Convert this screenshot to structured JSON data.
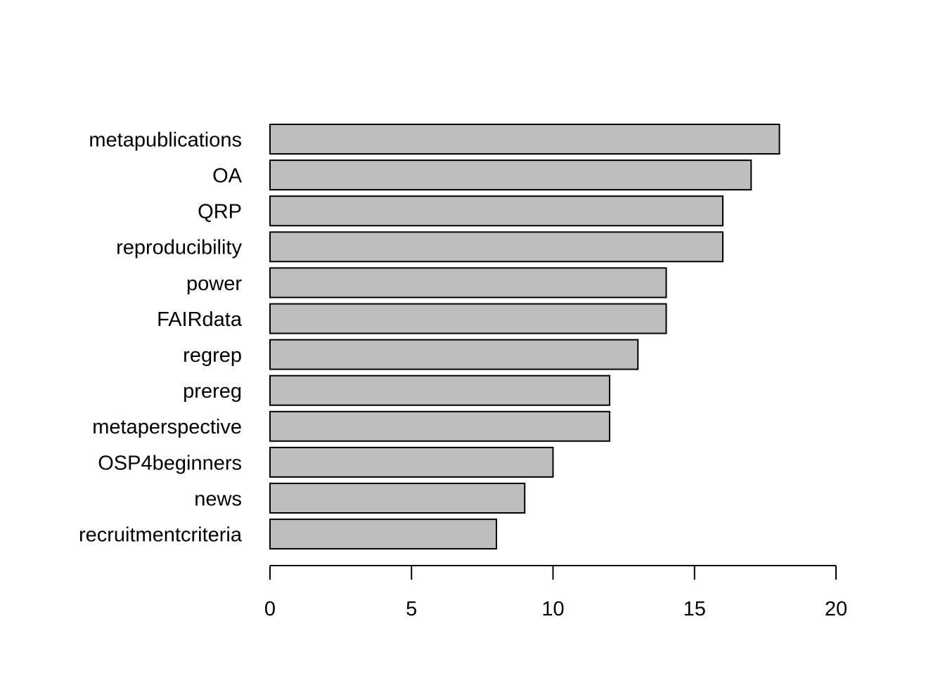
{
  "chart_data": {
    "type": "bar",
    "orientation": "horizontal",
    "title": "",
    "xlabel": "",
    "ylabel": "",
    "categories": [
      "metapublications",
      "OA",
      "QRP",
      "reproducibility",
      "power",
      "FAIRdata",
      "regrep",
      "prereg",
      "metaperspective",
      "OSP4beginners",
      "news",
      "recruitmentcriteria"
    ],
    "values": [
      18,
      17,
      16,
      16,
      14,
      14,
      13,
      12,
      12,
      10,
      9,
      8
    ],
    "xlim": [
      0,
      20
    ],
    "xticks": [
      0,
      5,
      10,
      15,
      20
    ],
    "xtick_labels": [
      "0",
      "5",
      "10",
      "15",
      "20"
    ],
    "grid": false,
    "legend": "none",
    "bar_fill": "#bebebe",
    "bar_stroke": "#000000"
  }
}
